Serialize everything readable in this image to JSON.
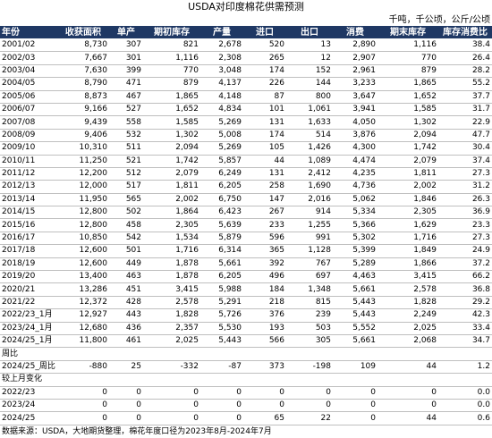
{
  "title": "USDA对印度棉花供需预测",
  "unit": "千吨，千公顷，公斤/公顷",
  "headers": [
    "年份",
    "收获面积",
    "单产",
    "期初库存",
    "产量",
    "进口",
    "出口",
    "消费",
    "期末库存",
    "库存消费比"
  ],
  "rows": [
    [
      "2001/02",
      "8,730",
      "307",
      "821",
      "2,678",
      "520",
      "13",
      "2,890",
      "1,116",
      "38.4"
    ],
    [
      "2002/03",
      "7,667",
      "301",
      "1,116",
      "2,308",
      "265",
      "12",
      "2,907",
      "770",
      "26.4"
    ],
    [
      "2003/04",
      "7,630",
      "399",
      "770",
      "3,048",
      "174",
      "152",
      "2,961",
      "879",
      "28.2"
    ],
    [
      "2004/05",
      "8,790",
      "471",
      "879",
      "4,137",
      "226",
      "144",
      "3,233",
      "1,865",
      "55.2"
    ],
    [
      "2005/06",
      "8,873",
      "467",
      "1,865",
      "4,148",
      "87",
      "800",
      "3,647",
      "1,652",
      "37.7"
    ],
    [
      "2006/07",
      "9,166",
      "527",
      "1,652",
      "4,834",
      "101",
      "1,061",
      "3,941",
      "1,585",
      "31.7"
    ],
    [
      "2007/08",
      "9,439",
      "558",
      "1,585",
      "5,269",
      "131",
      "1,633",
      "4,050",
      "1,302",
      "22.9"
    ],
    [
      "2008/09",
      "9,406",
      "532",
      "1,302",
      "5,008",
      "174",
      "514",
      "3,876",
      "2,094",
      "47.7"
    ],
    [
      "2009/10",
      "10,310",
      "511",
      "2,094",
      "5,269",
      "105",
      "1,426",
      "4,300",
      "1,742",
      "30.4"
    ],
    [
      "2010/11",
      "11,250",
      "521",
      "1,742",
      "5,857",
      "44",
      "1,089",
      "4,474",
      "2,079",
      "37.4"
    ],
    [
      "2011/12",
      "12,200",
      "512",
      "2,079",
      "6,249",
      "131",
      "2,412",
      "4,235",
      "1,811",
      "27.3"
    ],
    [
      "2012/13",
      "12,000",
      "517",
      "1,811",
      "6,205",
      "258",
      "1,690",
      "4,736",
      "2,002",
      "31.2"
    ],
    [
      "2013/14",
      "11,950",
      "565",
      "2,002",
      "6,750",
      "147",
      "2,016",
      "5,062",
      "1,846",
      "26.3"
    ],
    [
      "2014/15",
      "12,800",
      "502",
      "1,864",
      "6,423",
      "267",
      "914",
      "5,334",
      "2,305",
      "36.9"
    ],
    [
      "2015/16",
      "12,800",
      "458",
      "2,305",
      "5,639",
      "233",
      "1,255",
      "5,366",
      "1,629",
      "23.3"
    ],
    [
      "2016/17",
      "10,850",
      "542",
      "1,534",
      "5,879",
      "596",
      "991",
      "5,302",
      "1,716",
      "27.3"
    ],
    [
      "2017/18",
      "12,600",
      "501",
      "1,716",
      "6,314",
      "365",
      "1,128",
      "5,399",
      "1,849",
      "24.9"
    ],
    [
      "2018/19",
      "12,600",
      "449",
      "1,878",
      "5,661",
      "392",
      "767",
      "5,289",
      "1,866",
      "37.2"
    ],
    [
      "2019/20",
      "13,400",
      "463",
      "1,878",
      "6,205",
      "496",
      "697",
      "4,463",
      "3,415",
      "66.2"
    ],
    [
      "2020/21",
      "13,286",
      "451",
      "3,415",
      "5,988",
      "184",
      "1,348",
      "5,661",
      "2,578",
      "36.8"
    ],
    [
      "2021/22",
      "12,372",
      "428",
      "2,578",
      "5,291",
      "218",
      "815",
      "5,443",
      "1,828",
      "29.2"
    ],
    [
      "2022/23_1月",
      "12,927",
      "443",
      "1,828",
      "5,726",
      "376",
      "239",
      "5,443",
      "2,249",
      "42.3"
    ],
    [
      "2023/24_1月",
      "12,680",
      "436",
      "2,357",
      "5,530",
      "193",
      "503",
      "5,552",
      "2,025",
      "33.4"
    ],
    [
      "2024/25_1月",
      "11,800",
      "461",
      "2,025",
      "5,443",
      "566",
      "305",
      "5,661",
      "2,068",
      "34.7"
    ]
  ],
  "week_label": "周比",
  "week_row": [
    "2024/25_周比",
    "-880",
    "25",
    "-332",
    "-87",
    "373",
    "-198",
    "109",
    "44",
    "1.2"
  ],
  "month_label": "较上月变化",
  "month_rows": [
    [
      "2022/23",
      "0",
      "0",
      "0",
      "0",
      "0",
      "0",
      "0",
      "0",
      "0.0"
    ],
    [
      "2023/24",
      "0",
      "0",
      "0",
      "0",
      "0",
      "0",
      "0",
      "0",
      "0.0"
    ],
    [
      "2024/25",
      "0",
      "0",
      "0",
      "0",
      "65",
      "22",
      "0",
      "44",
      "0.6"
    ]
  ],
  "footer": "数据来源：USDA，大地期货整理，棉花年度口径为2023年8月-2024年7月"
}
